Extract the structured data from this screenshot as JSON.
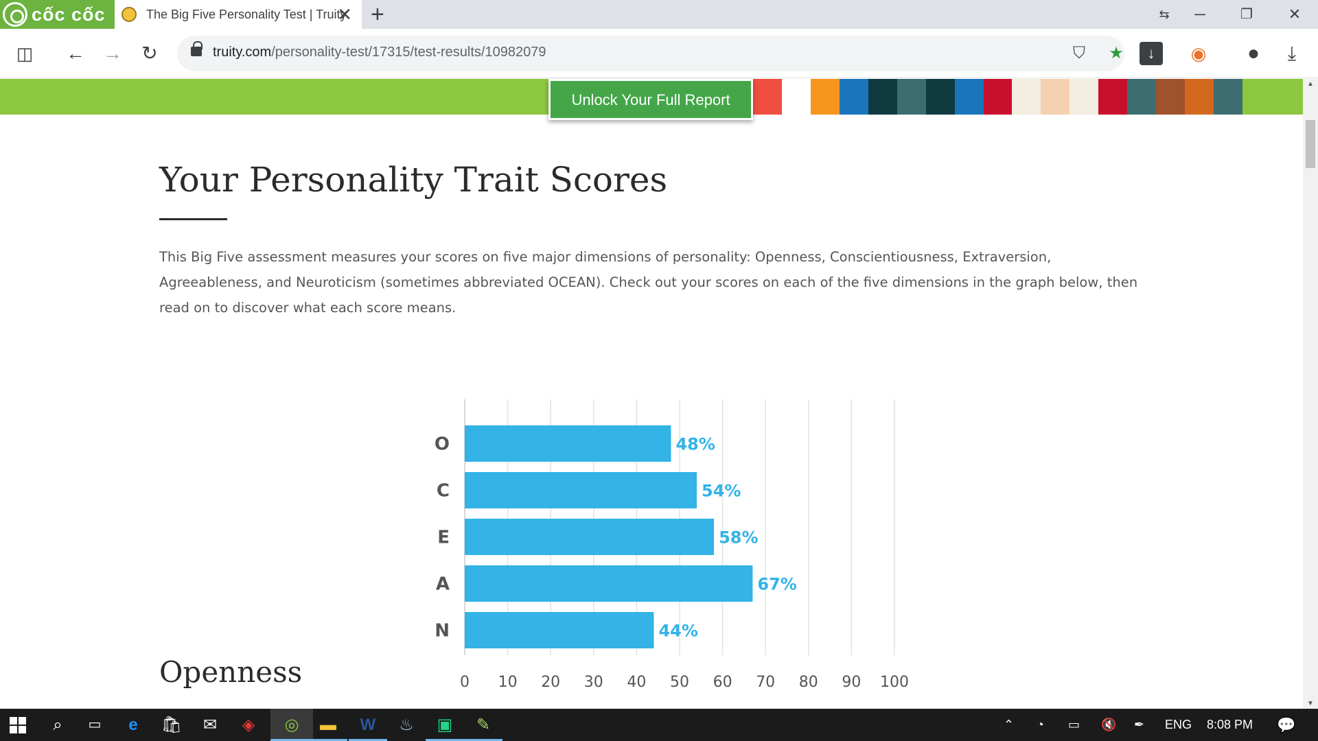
{
  "browser": {
    "brand_name": "cốc cốc",
    "tab_title": "The Big Five Personality Test | Truity",
    "url_host": "truity.com",
    "url_path": "/personality-test/17315/test-results/10982079",
    "icons": {
      "sidebar": "sidebar-icon",
      "back": "back-arrow-icon",
      "forward": "forward-arrow-icon",
      "reload": "reload-icon",
      "lock": "lock-icon",
      "shield": "shield-icon",
      "bookmark": "star-icon",
      "download": "download-icon",
      "profile": "profile-icon"
    }
  },
  "page": {
    "unlock_button": "Unlock Your Full Report",
    "heading": "Your Personality Trait Scores",
    "intro": "This Big Five assessment measures your scores on five major dimensions of personality: Openness, Conscientiousness, Extraversion, Agreeableness, and Neuroticism (sometimes abbreviated OCEAN). Check out your scores on each of the five dimensions in the graph below, then read on to discover what each score means.",
    "section_heading": "Openness"
  },
  "chart_data": {
    "type": "bar",
    "orientation": "horizontal",
    "categories": [
      "O",
      "C",
      "E",
      "A",
      "N"
    ],
    "values": [
      48,
      54,
      58,
      67,
      44
    ],
    "value_labels": [
      "48%",
      "54%",
      "58%",
      "67%",
      "44%"
    ],
    "xticks": [
      "0",
      "10",
      "20",
      "30",
      "40",
      "50",
      "60",
      "70",
      "80",
      "90",
      "100"
    ],
    "xlim": [
      0,
      100
    ],
    "grid": true,
    "bar_color": "#33b3e6"
  },
  "colors": {
    "green_bar": "#8dc63f",
    "unlock_button": "#44a649",
    "brand": "#6cb33f",
    "text": "#555555"
  },
  "taskbar": {
    "language": "ENG",
    "time": "8:08 PM"
  }
}
